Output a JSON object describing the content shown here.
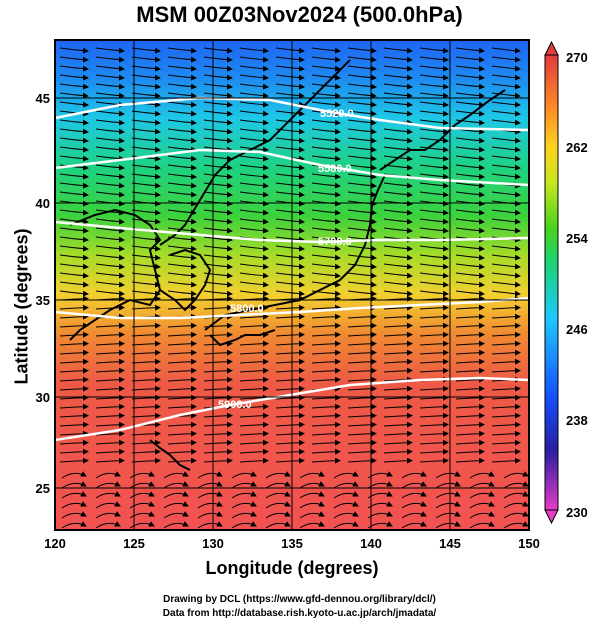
{
  "title": "MSM 00Z03Nov2024 (500.0hPa)",
  "axes": {
    "xlabel": "Longitude (degrees)",
    "ylabel": "Latitude  (degrees)",
    "x_ticks": [
      "120",
      "125",
      "130",
      "135",
      "140",
      "145",
      "150"
    ],
    "y_ticks": [
      "25",
      "30",
      "35",
      "40",
      "45"
    ]
  },
  "colorbar": {
    "ticks": [
      "270",
      "262",
      "254",
      "246",
      "238",
      "230"
    ],
    "min": 230,
    "max": 270,
    "colors": [
      "#e63cc8",
      "#2a1ea0",
      "#1450ff",
      "#1ec8ff",
      "#1ed26e",
      "#4bd21e",
      "#c8e61e",
      "#ffd21e",
      "#ff8c28",
      "#e13c3c",
      "#f04646"
    ]
  },
  "contours": [
    "5520.0",
    "5580.0",
    "5700.0",
    "5800.0",
    "5900.0"
  ],
  "credits": {
    "line1": "Drawing by DCL (https://www.gfd-dennou.org/library/dcl/)",
    "line2": "Data from http://database.rish.kyoto-u.ac.jp/arch/jmadata/"
  }
}
